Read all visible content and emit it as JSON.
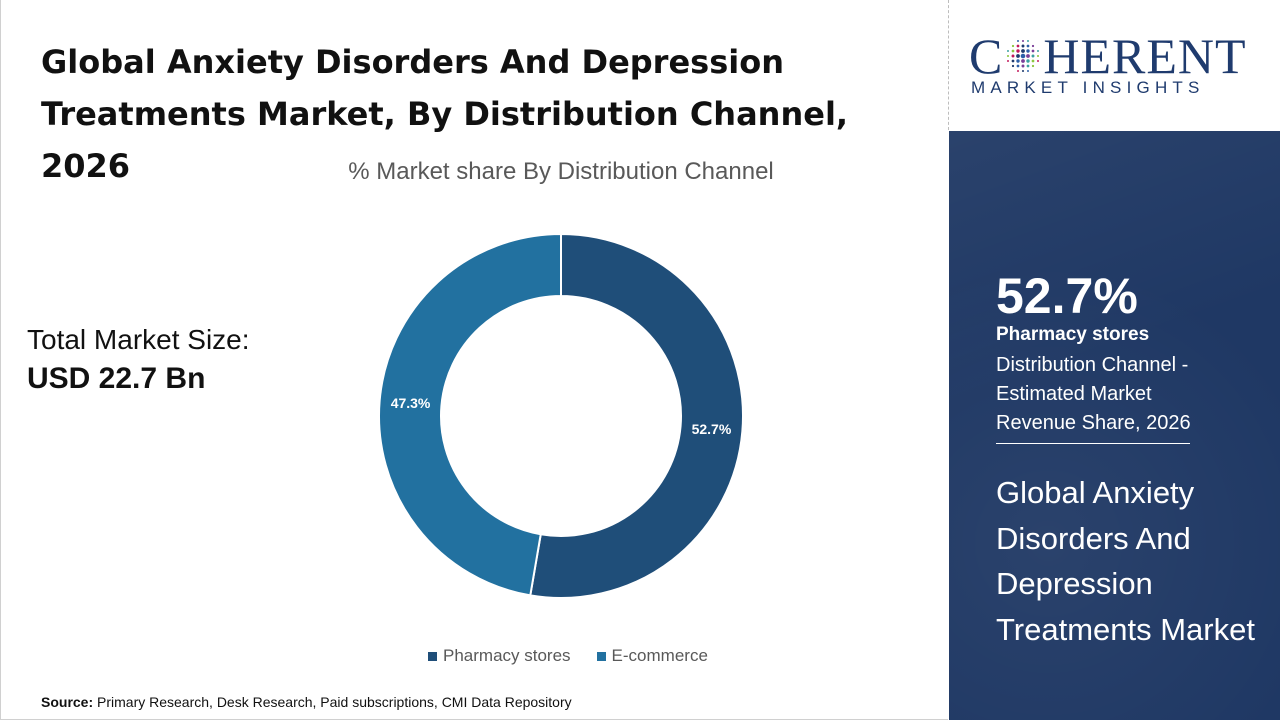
{
  "header": {
    "title": "Global Anxiety Disorders And Depression Treatments Market, By Distribution Channel, 2026"
  },
  "market_size": {
    "label": "Total Market Size:",
    "value": "USD 22.7 Bn"
  },
  "chart_data": {
    "type": "pie",
    "title": "% Market share By Distribution Channel",
    "donut": true,
    "categories": [
      "Pharmacy stores",
      "E-commerce"
    ],
    "values": [
      52.7,
      47.3
    ],
    "value_labels": [
      "52.7%",
      "47.3%"
    ],
    "colors": [
      "#1f4e79",
      "#2271a0"
    ],
    "legend_position": "bottom"
  },
  "source": {
    "label": "Source:",
    "text": "Primary Research, Desk Research, Paid subscriptions, CMI Data Repository"
  },
  "brand": {
    "logo_main_left": "C",
    "logo_main_right": "HERENT",
    "logo_sub": "MARKET INSIGHTS",
    "color": "#1f3b6e",
    "panel_color": "#1f3864"
  },
  "highlight": {
    "percent": "52.7%",
    "segment": "Pharmacy stores",
    "description": "Distribution Channel - Estimated Market Revenue Share, 2026",
    "market_name": "Global Anxiety Disorders And Depression Treatments Market"
  }
}
